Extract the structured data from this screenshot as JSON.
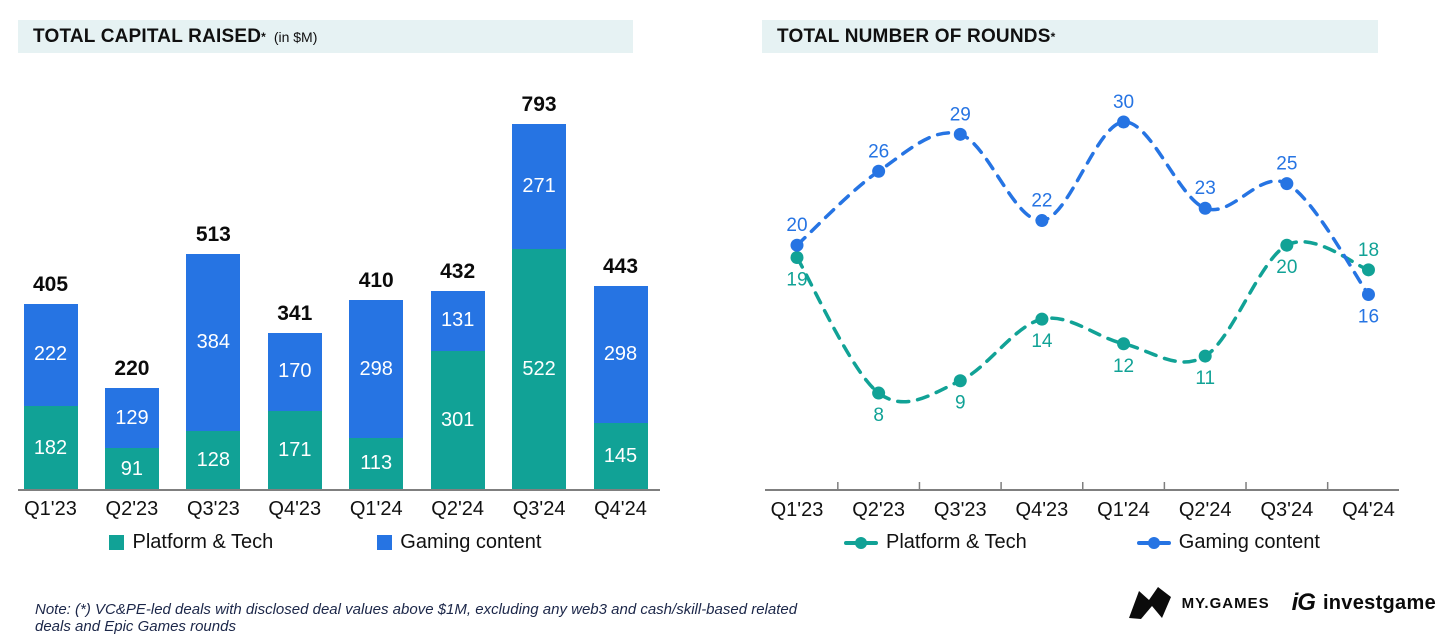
{
  "colors": {
    "platform_tech": "#11a296",
    "gaming_content": "#2674e3",
    "band_bg": "#e6f2f3",
    "axis": "#7f7f7f",
    "note_text": "#1c2749"
  },
  "chart_data": [
    {
      "type": "bar",
      "stacked": true,
      "title": "TOTAL CAPITAL RAISED",
      "title_star": "*",
      "title_suffix": "(in $M)",
      "categories": [
        "Q1'23",
        "Q2'23",
        "Q3'23",
        "Q4'23",
        "Q1'24",
        "Q2'24",
        "Q3'24",
        "Q4'24"
      ],
      "series": [
        {
          "name": "Platform & Tech",
          "color": "#11a296",
          "values": [
            182,
            91,
            128,
            171,
            113,
            301,
            522,
            145
          ]
        },
        {
          "name": "Gaming content",
          "color": "#2674e3",
          "values": [
            222,
            129,
            384,
            170,
            298,
            131,
            271,
            298
          ]
        }
      ],
      "totals": [
        405,
        220,
        513,
        341,
        410,
        432,
        793,
        443
      ],
      "ylim": [
        0,
        793
      ],
      "grid": false,
      "legend_position": "bottom"
    },
    {
      "type": "line",
      "title": "TOTAL NUMBER OF ROUNDS",
      "title_star": "*",
      "categories": [
        "Q1'23",
        "Q2'23",
        "Q3'23",
        "Q4'23",
        "Q1'24",
        "Q2'24",
        "Q3'24",
        "Q4'24"
      ],
      "series": [
        {
          "name": "Platform & Tech",
          "color": "#11a296",
          "values": [
            19,
            8,
            9,
            14,
            12,
            11,
            20,
            18
          ],
          "label_side": [
            "below",
            "below",
            "below",
            "below",
            "below",
            "below",
            "below",
            "above"
          ]
        },
        {
          "name": "Gaming content",
          "color": "#2674e3",
          "values": [
            20,
            26,
            29,
            22,
            30,
            23,
            25,
            16
          ],
          "label_side": [
            "above",
            "above",
            "above",
            "above",
            "above",
            "above",
            "above",
            "below"
          ]
        }
      ],
      "ylim": [
        0,
        32
      ],
      "grid": false,
      "line_style": "dashed",
      "legend_position": "bottom"
    }
  ],
  "note": "Note: (*) VC&PE-led deals with disclosed deal values above $1M, excluding any web3 and cash/skill-based related deals and Epic Games rounds",
  "footer": {
    "mygames_label": "MY.GAMES",
    "ig_mark": "iG",
    "investgame_label": "investgame"
  }
}
